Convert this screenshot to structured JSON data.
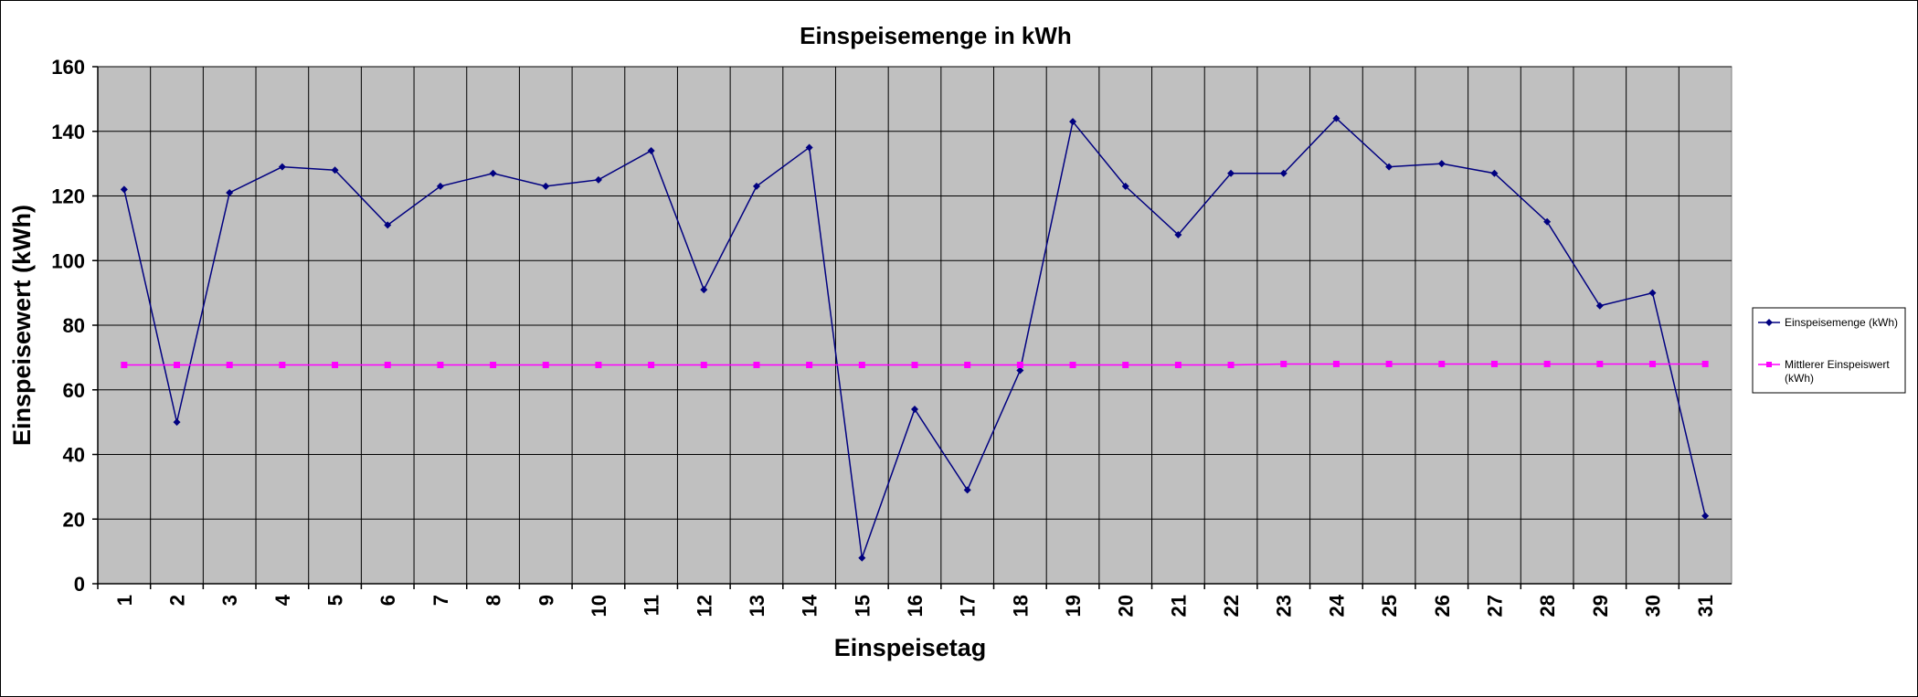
{
  "chart_data": {
    "type": "line",
    "title": "Einspeisemenge in kWh",
    "xlabel": "Einspeisetag",
    "ylabel": "Einspeisewert  (kWh)",
    "categories": [
      "1",
      "2",
      "3",
      "4",
      "5",
      "6",
      "7",
      "8",
      "9",
      "10",
      "11",
      "12",
      "13",
      "14",
      "15",
      "16",
      "17",
      "18",
      "19",
      "20",
      "21",
      "22",
      "23",
      "24",
      "25",
      "26",
      "27",
      "28",
      "29",
      "30",
      "31"
    ],
    "ylim": [
      0,
      160
    ],
    "yticks": [
      0,
      20,
      40,
      60,
      80,
      100,
      120,
      140,
      160
    ],
    "ytick_labels": [
      "0",
      "20",
      "40",
      "60",
      "80",
      "100",
      "120",
      "140",
      "160"
    ],
    "grid": true,
    "plot_background": "#c0c0c0",
    "legend_position": "right",
    "series": [
      {
        "name": "Einspeisemenge (kWh)",
        "color": "#000080",
        "marker": "diamond",
        "values": [
          122,
          50,
          121,
          129,
          128,
          111,
          123,
          127,
          123,
          125,
          134,
          91,
          123,
          135,
          8,
          54,
          29,
          66,
          143,
          123,
          108,
          127,
          127,
          144,
          129,
          130,
          127,
          112,
          86,
          90,
          21
        ]
      },
      {
        "name": "Mittlerer Einspeiswert (kWh)",
        "legend_lines": [
          "Mittlerer Einspeiswert",
          "(kWh)"
        ],
        "color": "#ff00ff",
        "marker": "square",
        "values": [
          67.7,
          67.7,
          67.7,
          67.7,
          67.7,
          67.7,
          67.7,
          67.7,
          67.7,
          67.7,
          67.7,
          67.7,
          67.7,
          67.7,
          67.7,
          67.7,
          67.7,
          67.7,
          67.7,
          67.7,
          67.7,
          67.7,
          68,
          68,
          68,
          68,
          68,
          68,
          68,
          68,
          68
        ]
      }
    ]
  }
}
